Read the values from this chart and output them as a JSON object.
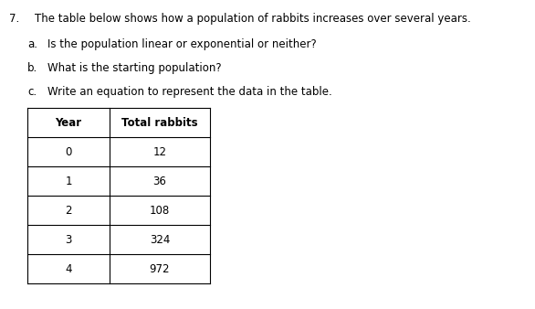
{
  "title_number": "7.",
  "title_text": "The table below shows how a population of rabbits increases over several years.",
  "questions": [
    {
      "label": "a.",
      "text": "Is the population linear or exponential or neither?"
    },
    {
      "label": "b.",
      "text": "What is the starting population?"
    },
    {
      "label": "c.",
      "text": "Write an equation to represent the data in the table."
    }
  ],
  "col_headers": [
    "Year",
    "Total rabbits"
  ],
  "rows": [
    [
      0,
      12
    ],
    [
      1,
      36
    ],
    [
      2,
      108
    ],
    [
      3,
      324
    ],
    [
      4,
      972
    ]
  ],
  "bg_color": "#ffffff",
  "text_color": "#000000",
  "font_size_title": 8.5,
  "font_size_questions": 8.5,
  "font_size_table": 8.5
}
